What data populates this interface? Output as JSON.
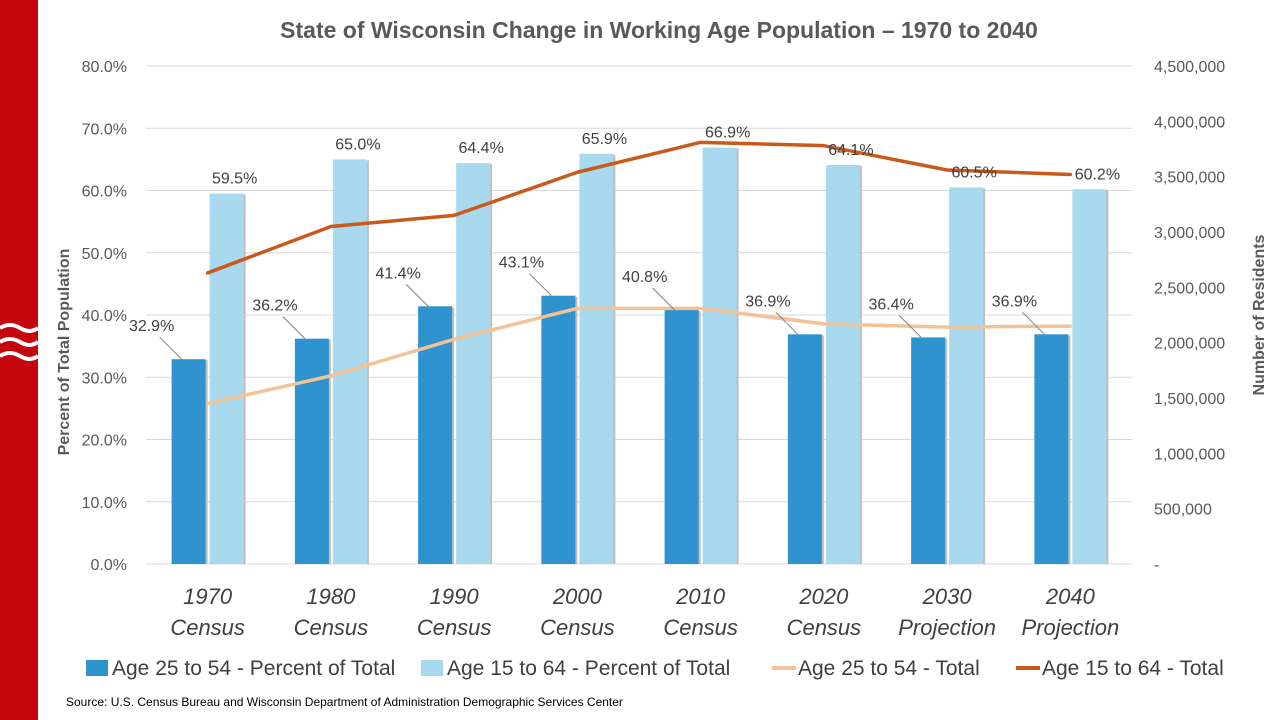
{
  "colors": {
    "brand_red": "#c5050c",
    "bar_dark": "#2e93cf",
    "bar_light": "#a8d9ef",
    "line_light": "#f2c397",
    "line_dark": "#c85a1c",
    "grid": "#d9d9d9"
  },
  "source": "Source: U.S. Census Bureau and Wisconsin Department of Administration Demographic Services Center",
  "chart_data": {
    "type": "bar",
    "title": "State of Wisconsin Change in Working Age Population – 1970 to 2040",
    "ylabel": "Percent of Total Population",
    "y2label": "Number of Residents",
    "xlabel": "",
    "ylim": [
      0,
      80
    ],
    "y2lim": [
      0,
      4500000
    ],
    "grid": true,
    "legend_position": "bottom",
    "y_ticks": [
      "0.0%",
      "10.0%",
      "20.0%",
      "30.0%",
      "40.0%",
      "50.0%",
      "60.0%",
      "70.0%",
      "80.0%"
    ],
    "y2_ticks": [
      "-",
      "500,000",
      "1,000,000",
      "1,500,000",
      "2,000,000",
      "2,500,000",
      "3,000,000",
      "3,500,000",
      "4,000,000",
      "4,500,000"
    ],
    "categories": [
      [
        "1970",
        "Census"
      ],
      [
        "1980",
        "Census"
      ],
      [
        "1990",
        "Census"
      ],
      [
        "2000",
        "Census"
      ],
      [
        "2010",
        "Census"
      ],
      [
        "2020",
        "Census"
      ],
      [
        "2030",
        "Projection"
      ],
      [
        "2040",
        "Projection"
      ]
    ],
    "series": [
      {
        "name": "Age 25 to 54 - Percent of Total",
        "type": "bar",
        "axis": "left",
        "values": [
          32.9,
          36.2,
          41.4,
          43.1,
          40.8,
          36.9,
          36.4,
          36.9
        ],
        "labels": [
          "32.9%",
          "36.2%",
          "41.4%",
          "43.1%",
          "40.8%",
          "36.9%",
          "36.4%",
          "36.9%"
        ]
      },
      {
        "name": "Age 15 to 64 - Percent of Total",
        "type": "bar",
        "axis": "left",
        "values": [
          59.5,
          65.0,
          64.4,
          65.9,
          66.9,
          64.1,
          60.5,
          60.2
        ],
        "labels": [
          "59.5%",
          "65.0%",
          "64.4%",
          "65.9%",
          "66.9%",
          "64.1%",
          "60.5%",
          "60.2%"
        ]
      },
      {
        "name": "Age 25 to 54 - Total",
        "type": "line",
        "axis": "right",
        "values": [
          1450000,
          1700000,
          2030000,
          2310000,
          2310000,
          2170000,
          2140000,
          2150000
        ]
      },
      {
        "name": "Age 15 to 64 - Total",
        "type": "line",
        "axis": "right",
        "values": [
          2630000,
          3050000,
          3150000,
          3540000,
          3810000,
          3780000,
          3560000,
          3520000
        ]
      }
    ]
  }
}
